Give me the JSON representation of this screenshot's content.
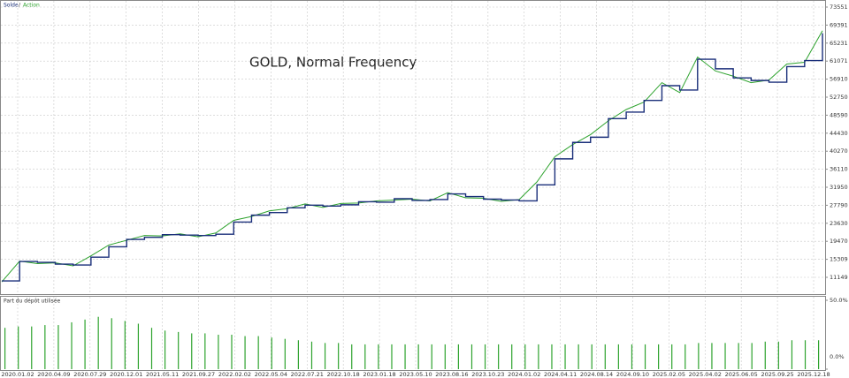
{
  "chart_data": [
    {
      "type": "line",
      "annotation": "GOLD, Normal Frequency",
      "legend_separator": "/",
      "ylim": [
        7276,
        75182
      ],
      "yticks": [
        73551,
        69391,
        65231,
        61071,
        56910,
        52750,
        48590,
        44430,
        40270,
        36110,
        31950,
        27790,
        23630,
        19470,
        15309,
        11149
      ],
      "grid": true,
      "series": [
        {
          "name": "Solde",
          "color": "#1a2f7a",
          "step": true,
          "values": [
            10330,
            14800,
            14600,
            14200,
            14000,
            15800,
            18200,
            19900,
            20400,
            21000,
            20900,
            20800,
            21100,
            23900,
            25500,
            26100,
            27200,
            27800,
            27600,
            27900,
            28600,
            28500,
            29300,
            28900,
            29100,
            30400,
            29800,
            29200,
            29000,
            28800,
            32500,
            38500,
            42300,
            43500,
            47800,
            49300,
            52000,
            55400,
            54400,
            61500,
            59300,
            57200,
            56600,
            56200,
            59800,
            61200,
            67500
          ]
        },
        {
          "name": "Action",
          "color": "#2ea32e",
          "values": [
            10100,
            14900,
            14300,
            14500,
            13800,
            16100,
            18600,
            19700,
            20800,
            20700,
            21200,
            20500,
            21400,
            24300,
            25200,
            26500,
            27000,
            28100,
            27300,
            28200,
            28300,
            28800,
            29000,
            29200,
            28800,
            30700,
            29500,
            29400,
            28700,
            29100,
            33200,
            39000,
            41800,
            44100,
            47300,
            49900,
            51600,
            56100,
            53800,
            62000,
            58800,
            57600,
            56100,
            56700,
            60400,
            60800,
            68100
          ]
        }
      ]
    },
    {
      "type": "bar",
      "title": "Part du dépôt utilisée",
      "color": "#2ea32e",
      "ylim": [
        0,
        50
      ],
      "yticks": [
        {
          "value": 0,
          "label": "0.0%"
        },
        {
          "value": 50,
          "label": "50.0%"
        }
      ],
      "values": [
        30,
        31,
        31,
        32,
        32,
        34,
        36,
        38,
        37,
        35,
        33,
        30,
        28,
        27,
        26,
        26,
        25,
        25,
        24,
        24,
        23,
        22,
        21,
        20,
        19,
        19,
        18,
        18,
        18,
        18,
        18,
        18,
        18,
        18,
        18,
        18,
        18,
        18,
        18,
        18,
        18,
        18,
        18,
        18,
        18,
        18,
        18,
        18,
        18,
        18,
        18,
        18,
        19,
        19,
        19,
        19,
        19,
        20,
        20,
        21,
        21,
        21
      ],
      "xtick_labels": [
        "2020.01.02",
        "2020.04.09",
        "2020.07.29",
        "2020.12.01",
        "2021.05.11",
        "2021.09.27",
        "2022.02.02",
        "2022.05.04",
        "2022.07.21",
        "2022.10.18",
        "2023.01.18",
        "2023.05.10",
        "2023.08.16",
        "2023.10.23",
        "2024.01.02",
        "2024.04.11",
        "2024.08.14",
        "2024.09.10",
        "2025.02.05",
        "2025.04.02",
        "2025.06.05",
        "2025.09.25",
        "2025.12.18"
      ]
    }
  ]
}
